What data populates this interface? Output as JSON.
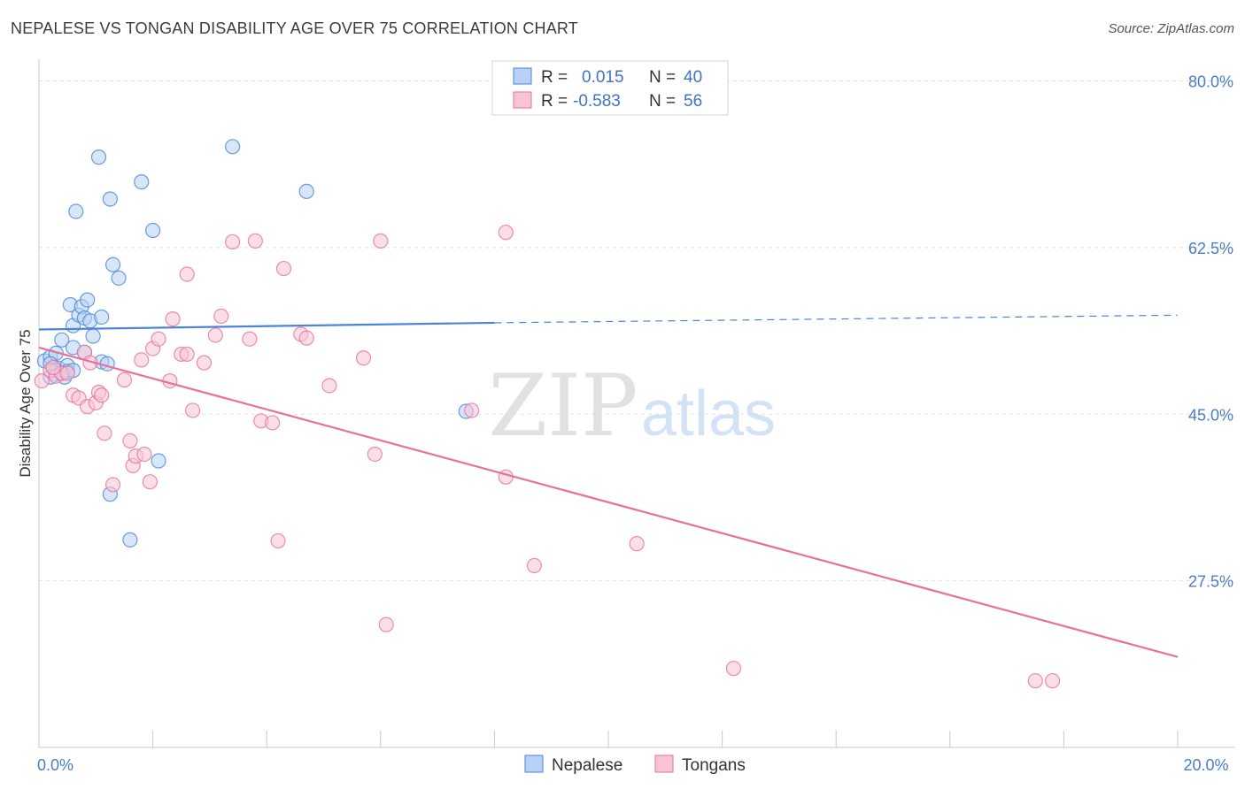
{
  "title": "NEPALESE VS TONGAN DISABILITY AGE OVER 75 CORRELATION CHART",
  "source": "Source: ZipAtlas.com",
  "watermark": {
    "zip": "ZIP",
    "atlas": "atlas"
  },
  "colors": {
    "nepalese": "#4a85d8",
    "nepalese_fill": "#b8d1f5",
    "tongans": "#e8709a",
    "tongans_fill": "#f7c4d6",
    "tick_label": "#4a7cc9",
    "grid": "#e2e2e2"
  },
  "legend": {
    "nepalese": {
      "r_label": "R =",
      "r_value": "0.015",
      "n_label": "N =",
      "n_value": "40"
    },
    "tongans": {
      "r_label": "R =",
      "r_value": "-0.583",
      "n_label": "N =",
      "n_value": "56"
    }
  },
  "bottom_legend": [
    "Nepalese",
    "Tongans"
  ],
  "chart_data": {
    "type": "scatter",
    "title": "NEPALESE VS TONGAN DISABILITY AGE OVER 75 CORRELATION CHART",
    "xlabel": "",
    "ylabel": "Disability Age Over 75",
    "xlim": [
      0,
      20
    ],
    "ylim": [
      10,
      82
    ],
    "x_tick_labels": [
      {
        "value": 0,
        "label": "0.0%"
      },
      {
        "value": 20,
        "label": "20.0%"
      }
    ],
    "y_tick_labels": [
      {
        "value": 80,
        "label": "80.0%"
      },
      {
        "value": 62.5,
        "label": "62.5%"
      },
      {
        "value": 45,
        "label": "45.0%"
      },
      {
        "value": 27.5,
        "label": "27.5%"
      }
    ],
    "grid": true,
    "legend_placement": "top-center",
    "series": [
      {
        "name": "Nepalese",
        "trend": {
          "x0": 0,
          "y0": 53.9,
          "x1": 8,
          "y1": 54.6,
          "dashed_to_x": 20,
          "dashed_to_y": 55.4
        },
        "points": [
          [
            0.1,
            50.6
          ],
          [
            0.2,
            51.0
          ],
          [
            0.3,
            49.2
          ],
          [
            0.3,
            51.4
          ],
          [
            0.35,
            49.8
          ],
          [
            0.4,
            52.8
          ],
          [
            0.45,
            48.9
          ],
          [
            0.5,
            50.1
          ],
          [
            0.5,
            49.5
          ],
          [
            0.55,
            56.5
          ],
          [
            0.6,
            52.0
          ],
          [
            0.6,
            54.3
          ],
          [
            0.65,
            66.3
          ],
          [
            0.7,
            55.4
          ],
          [
            0.75,
            56.3
          ],
          [
            0.8,
            55.1
          ],
          [
            0.8,
            51.5
          ],
          [
            0.85,
            57.0
          ],
          [
            0.9,
            54.8
          ],
          [
            0.95,
            53.2
          ],
          [
            1.05,
            72.0
          ],
          [
            1.1,
            50.5
          ],
          [
            1.1,
            55.2
          ],
          [
            1.25,
            67.6
          ],
          [
            1.3,
            60.7
          ],
          [
            1.4,
            59.3
          ],
          [
            1.6,
            31.8
          ],
          [
            1.8,
            69.4
          ],
          [
            2.0,
            64.3
          ],
          [
            1.25,
            36.6
          ],
          [
            2.1,
            40.1
          ],
          [
            3.4,
            73.1
          ],
          [
            4.7,
            68.4
          ],
          [
            7.5,
            45.3
          ],
          [
            0.2,
            50.3
          ],
          [
            0.3,
            49.6
          ],
          [
            0.4,
            49.3
          ],
          [
            0.2,
            48.9
          ],
          [
            0.6,
            49.6
          ],
          [
            1.2,
            50.3
          ]
        ]
      },
      {
        "name": "Tongans",
        "trend": {
          "x0": 0,
          "y0": 52.0,
          "x1": 20,
          "y1": 19.5
        },
        "points": [
          [
            0.05,
            48.5
          ],
          [
            0.2,
            49.6
          ],
          [
            0.3,
            49.0
          ],
          [
            0.4,
            49.3
          ],
          [
            0.5,
            49.3
          ],
          [
            0.6,
            47.0
          ],
          [
            0.7,
            46.7
          ],
          [
            0.8,
            51.5
          ],
          [
            0.85,
            45.8
          ],
          [
            0.9,
            50.4
          ],
          [
            1.0,
            46.2
          ],
          [
            1.05,
            47.3
          ],
          [
            1.1,
            47.0
          ],
          [
            1.15,
            43.0
          ],
          [
            1.3,
            37.6
          ],
          [
            1.5,
            48.6
          ],
          [
            1.6,
            42.2
          ],
          [
            1.65,
            39.6
          ],
          [
            1.7,
            40.6
          ],
          [
            1.8,
            50.7
          ],
          [
            1.85,
            40.8
          ],
          [
            1.95,
            37.9
          ],
          [
            2.0,
            51.9
          ],
          [
            2.1,
            52.9
          ],
          [
            2.3,
            48.5
          ],
          [
            2.35,
            55.0
          ],
          [
            2.5,
            51.3
          ],
          [
            2.6,
            51.3
          ],
          [
            2.7,
            45.4
          ],
          [
            2.6,
            59.7
          ],
          [
            2.9,
            50.4
          ],
          [
            3.1,
            53.3
          ],
          [
            3.2,
            55.3
          ],
          [
            3.4,
            63.1
          ],
          [
            3.7,
            52.9
          ],
          [
            3.8,
            63.2
          ],
          [
            3.9,
            44.3
          ],
          [
            4.1,
            44.1
          ],
          [
            4.2,
            31.7
          ],
          [
            4.3,
            60.3
          ],
          [
            4.6,
            53.4
          ],
          [
            4.7,
            53.0
          ],
          [
            5.1,
            48.0
          ],
          [
            5.7,
            50.9
          ],
          [
            5.9,
            40.8
          ],
          [
            6.0,
            63.2
          ],
          [
            6.1,
            22.9
          ],
          [
            7.6,
            45.4
          ],
          [
            8.2,
            64.1
          ],
          [
            8.2,
            38.4
          ],
          [
            8.7,
            29.1
          ],
          [
            10.5,
            31.4
          ],
          [
            12.2,
            18.3
          ],
          [
            17.5,
            17.0
          ],
          [
            17.8,
            17.0
          ],
          [
            0.25,
            49.9
          ]
        ]
      }
    ]
  }
}
